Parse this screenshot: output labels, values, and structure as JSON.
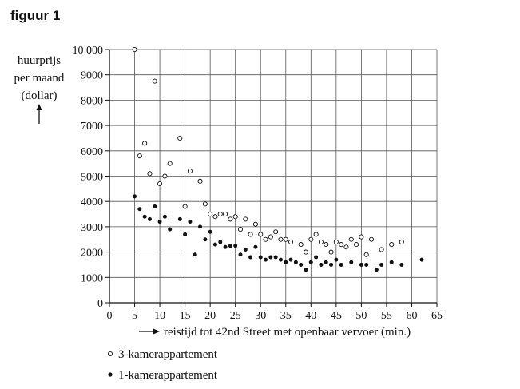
{
  "figure_label": "figuur 1",
  "chart_data": {
    "type": "scatter",
    "title": "",
    "ylabel_lines": [
      "huurprijs",
      "per maand",
      "(dollar)"
    ],
    "xlabel": "reistijd tot 42nd Street met openbaar vervoer (min.)",
    "xlim": [
      0,
      65
    ],
    "ylim": [
      0,
      10000
    ],
    "x_ticks": [
      "0",
      "5",
      "10",
      "15",
      "20",
      "25",
      "30",
      "35",
      "40",
      "45",
      "50",
      "55",
      "60",
      "65"
    ],
    "y_ticks": [
      "0",
      "1000",
      "2000",
      "3000",
      "4000",
      "5000",
      "6000",
      "7000",
      "8000",
      "9000",
      "10 000"
    ],
    "grid": true,
    "legend_position": "bottom-left",
    "series": [
      {
        "name": "3-kamerappartement",
        "marker": "open-circle",
        "points": [
          [
            5,
            10000
          ],
          [
            6,
            5800
          ],
          [
            7,
            6300
          ],
          [
            8,
            5100
          ],
          [
            9,
            8750
          ],
          [
            10,
            4700
          ],
          [
            11,
            5000
          ],
          [
            12,
            5500
          ],
          [
            14,
            6500
          ],
          [
            15,
            3800
          ],
          [
            16,
            5200
          ],
          [
            18,
            4800
          ],
          [
            19,
            3900
          ],
          [
            20,
            3500
          ],
          [
            21,
            3400
          ],
          [
            22,
            3500
          ],
          [
            23,
            3500
          ],
          [
            24,
            3300
          ],
          [
            25,
            3400
          ],
          [
            26,
            2900
          ],
          [
            27,
            3300
          ],
          [
            28,
            2700
          ],
          [
            29,
            3100
          ],
          [
            30,
            2700
          ],
          [
            31,
            2500
          ],
          [
            32,
            2600
          ],
          [
            33,
            2800
          ],
          [
            34,
            2500
          ],
          [
            35,
            2500
          ],
          [
            36,
            2400
          ],
          [
            38,
            2300
          ],
          [
            39,
            2000
          ],
          [
            40,
            2500
          ],
          [
            41,
            2700
          ],
          [
            42,
            2400
          ],
          [
            43,
            2300
          ],
          [
            44,
            2000
          ],
          [
            45,
            2400
          ],
          [
            46,
            2300
          ],
          [
            47,
            2200
          ],
          [
            48,
            2500
          ],
          [
            49,
            2300
          ],
          [
            50,
            2600
          ],
          [
            51,
            1900
          ],
          [
            52,
            2500
          ],
          [
            54,
            2100
          ],
          [
            56,
            2300
          ],
          [
            58,
            2400
          ]
        ]
      },
      {
        "name": "1-kamerappartement",
        "marker": "filled-circle",
        "points": [
          [
            5,
            4200
          ],
          [
            6,
            3700
          ],
          [
            7,
            3400
          ],
          [
            8,
            3300
          ],
          [
            9,
            3800
          ],
          [
            10,
            3200
          ],
          [
            11,
            3400
          ],
          [
            12,
            2900
          ],
          [
            14,
            3300
          ],
          [
            15,
            2700
          ],
          [
            16,
            3200
          ],
          [
            17,
            1900
          ],
          [
            18,
            3000
          ],
          [
            19,
            2500
          ],
          [
            20,
            2800
          ],
          [
            21,
            2300
          ],
          [
            22,
            2400
          ],
          [
            23,
            2200
          ],
          [
            24,
            2250
          ],
          [
            25,
            2250
          ],
          [
            26,
            1900
          ],
          [
            27,
            2100
          ],
          [
            28,
            1800
          ],
          [
            29,
            2200
          ],
          [
            30,
            1800
          ],
          [
            31,
            1700
          ],
          [
            32,
            1800
          ],
          [
            33,
            1800
          ],
          [
            34,
            1700
          ],
          [
            35,
            1600
          ],
          [
            36,
            1700
          ],
          [
            37,
            1600
          ],
          [
            38,
            1500
          ],
          [
            39,
            1300
          ],
          [
            40,
            1600
          ],
          [
            41,
            1800
          ],
          [
            42,
            1500
          ],
          [
            43,
            1600
          ],
          [
            44,
            1500
          ],
          [
            45,
            1700
          ],
          [
            46,
            1500
          ],
          [
            48,
            1600
          ],
          [
            50,
            1500
          ],
          [
            51,
            1500
          ],
          [
            53,
            1300
          ],
          [
            54,
            1500
          ],
          [
            56,
            1600
          ],
          [
            58,
            1500
          ],
          [
            62,
            1700
          ]
        ]
      }
    ]
  }
}
